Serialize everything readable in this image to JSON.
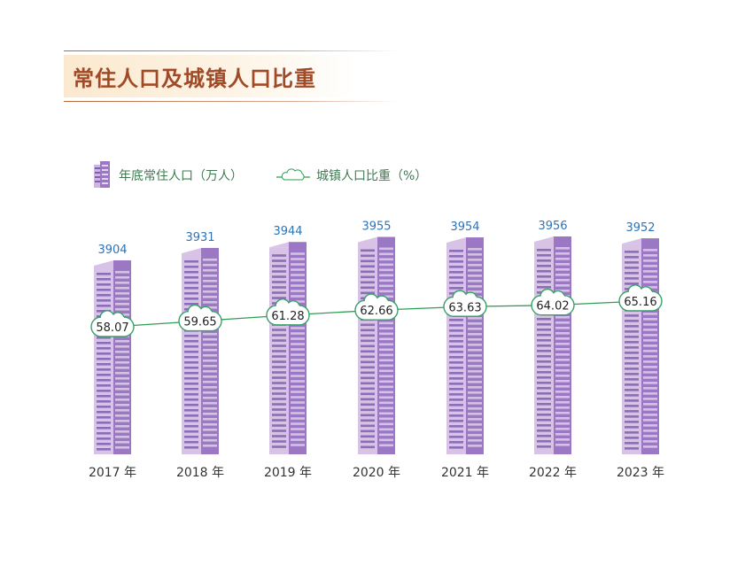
{
  "page_title": "常住人口及城镇人口比重",
  "colors": {
    "title": "#a04a27",
    "bar_light": "#d8c3e7",
    "bar_dark": "#9c78c4",
    "window": "#7d5fae",
    "line": "#2e9e54",
    "value_label": "#2e73b5"
  },
  "legend": {
    "items": [
      {
        "label": "年底常住人口（万人）",
        "icon": "building-icon"
      },
      {
        "label": "城镇人口比重（%）",
        "icon": "cloud-line-icon"
      }
    ],
    "position": "top-left"
  },
  "chart_data": {
    "type": "bar",
    "categories": [
      "2017 年",
      "2018 年",
      "2019 年",
      "2020 年",
      "2021 年",
      "2022 年",
      "2023 年"
    ],
    "series": [
      {
        "name": "年底常住人口（万人）",
        "kind": "bar",
        "values": [
          3904,
          3931,
          3944,
          3955,
          3954,
          3956,
          3952
        ]
      },
      {
        "name": "城镇人口比重（%）",
        "kind": "line",
        "values": [
          58.07,
          59.65,
          61.28,
          62.66,
          63.63,
          64.02,
          65.16
        ]
      }
    ],
    "title": "常住人口及城镇人口比重",
    "grid": false,
    "legend_position": "top-left"
  }
}
